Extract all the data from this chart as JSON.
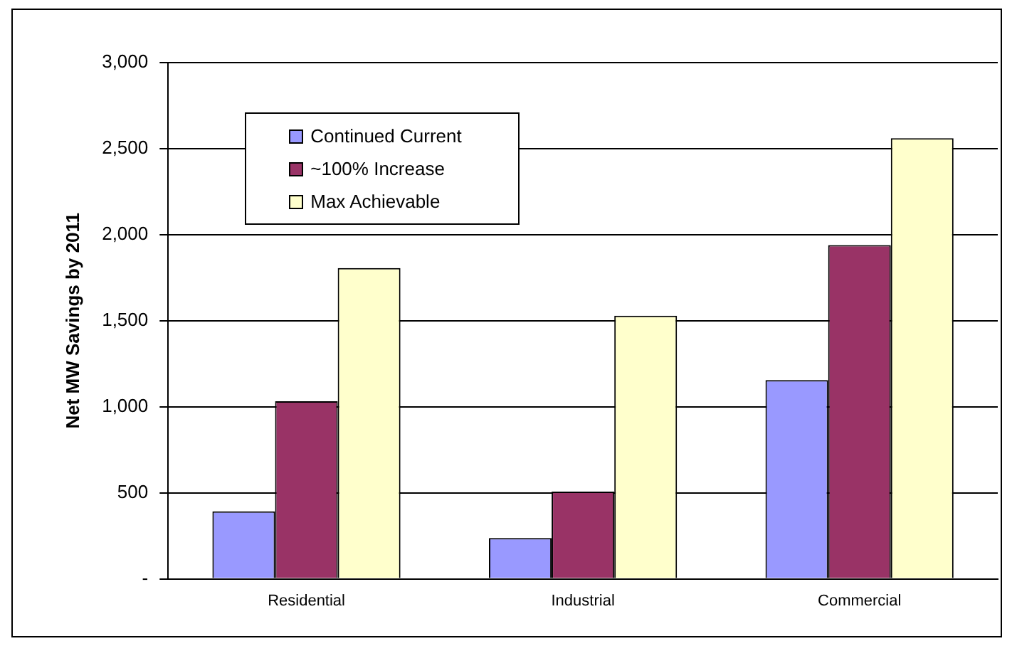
{
  "chart_data": {
    "type": "bar",
    "ylabel": "Net MW Savings by 2011",
    "categories": [
      "Residential",
      "Industrial",
      "Commercial"
    ],
    "series": [
      {
        "name": "Continued Current",
        "color": "#9999ff",
        "values": [
          392,
          237,
          1155
        ]
      },
      {
        "name": "~100% Increase",
        "color": "#993366",
        "values": [
          1032,
          507,
          1939
        ]
      },
      {
        "name": "Max Achievable",
        "color": "#ffffcc",
        "values": [
          1806,
          1529,
          2561
        ]
      }
    ],
    "ylim": [
      0,
      3000
    ],
    "yticks": [
      {
        "value": 0,
        "label": "-"
      },
      {
        "value": 500,
        "label": "500"
      },
      {
        "value": 1000,
        "label": "1,000"
      },
      {
        "value": 1500,
        "label": "1,500"
      },
      {
        "value": 2000,
        "label": "2,000"
      },
      {
        "value": 2500,
        "label": "2,500"
      },
      {
        "value": 3000,
        "label": "3,000"
      }
    ],
    "grid": "y",
    "legend": "top left"
  }
}
